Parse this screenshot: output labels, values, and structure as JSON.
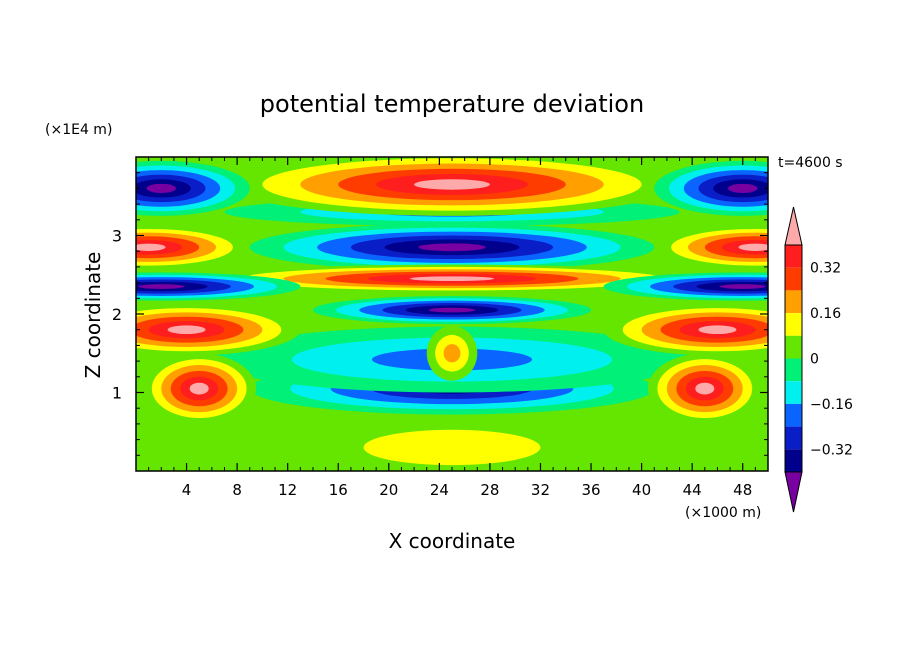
{
  "chart_data": {
    "type": "heatmap",
    "title": "potential temperature deviation",
    "xlabel": "X coordinate",
    "ylabel": "Z coordinate",
    "x_unit": "(×1000 m)",
    "y_unit": "(×1E4 m)",
    "time_label": "t=4600 s",
    "xlim": [
      0,
      50
    ],
    "ylim": [
      0,
      4
    ],
    "x_ticks": [
      {
        "value": 4,
        "label": "4"
      },
      {
        "value": 8,
        "label": "8"
      },
      {
        "value": 12,
        "label": "12"
      },
      {
        "value": 16,
        "label": "16"
      },
      {
        "value": 20,
        "label": "20"
      },
      {
        "value": 24,
        "label": "24"
      },
      {
        "value": 28,
        "label": "28"
      },
      {
        "value": 32,
        "label": "32"
      },
      {
        "value": 36,
        "label": "36"
      },
      {
        "value": 40,
        "label": "40"
      },
      {
        "value": 44,
        "label": "44"
      },
      {
        "value": 48,
        "label": "48"
      }
    ],
    "y_ticks": [
      {
        "value": 1,
        "label": "1"
      },
      {
        "value": 2,
        "label": "2"
      },
      {
        "value": 3,
        "label": "3"
      }
    ],
    "colorbar": {
      "levels": [
        -0.4,
        -0.32,
        -0.24,
        -0.16,
        -0.08,
        0,
        0.08,
        0.16,
        0.24,
        0.32,
        0.4
      ],
      "colors": [
        "#7800a0",
        "#00008c",
        "#0a1ec8",
        "#0a64ff",
        "#00f0f0",
        "#00f078",
        "#64e600",
        "#ffff00",
        "#ffa000",
        "#ff3c00",
        "#ff1e1e",
        "#ffaaaa"
      ],
      "labels": [
        {
          "value": -0.32,
          "label": "−0.32"
        },
        {
          "value": -0.16,
          "label": "−0.16"
        },
        {
          "value": 0,
          "label": "0"
        },
        {
          "value": 0.16,
          "label": "0.16"
        },
        {
          "value": 0.32,
          "label": "0.32"
        }
      ]
    },
    "blobs": [
      {
        "x": 25,
        "y": 0.3,
        "rx": 14,
        "ry": 0.45,
        "v": 0.12
      },
      {
        "x": 25,
        "y": 1.05,
        "rx": 16,
        "ry": 0.33,
        "v": -0.34
      },
      {
        "x": 25,
        "y": 1.42,
        "rx": 19,
        "ry": 0.42,
        "v": -0.18
      },
      {
        "x": 25,
        "y": 1.5,
        "rx": 2,
        "ry": 0.35,
        "v": 0.2
      },
      {
        "x": 25,
        "y": 2.05,
        "rx": 11,
        "ry": 0.18,
        "v": -0.45
      },
      {
        "x": 25,
        "y": 2.85,
        "rx": 16,
        "ry": 0.3,
        "v": -0.5
      },
      {
        "x": 25,
        "y": 3.3,
        "rx": 18,
        "ry": 0.18,
        "v": -0.2
      },
      {
        "x": 25,
        "y": 3.65,
        "rx": 18,
        "ry": 0.4,
        "v": 0.6
      },
      {
        "x": 25,
        "y": 2.45,
        "rx": 20,
        "ry": 0.18,
        "v": 0.55
      },
      {
        "x": 2,
        "y": 3.6,
        "rx": 7,
        "ry": 0.35,
        "v": -0.5
      },
      {
        "x": 48,
        "y": 3.6,
        "rx": 7,
        "ry": 0.35,
        "v": -0.5
      },
      {
        "x": 1,
        "y": 2.85,
        "rx": 8,
        "ry": 0.28,
        "v": 0.5
      },
      {
        "x": 49,
        "y": 2.85,
        "rx": 8,
        "ry": 0.28,
        "v": 0.5
      },
      {
        "x": 2,
        "y": 2.35,
        "rx": 11,
        "ry": 0.18,
        "v": -0.5
      },
      {
        "x": 48,
        "y": 2.35,
        "rx": 11,
        "ry": 0.18,
        "v": -0.5
      },
      {
        "x": 4,
        "y": 1.8,
        "rx": 9,
        "ry": 0.33,
        "v": 0.5
      },
      {
        "x": 46,
        "y": 1.8,
        "rx": 9,
        "ry": 0.33,
        "v": 0.5
      },
      {
        "x": 5,
        "y": 1.05,
        "rx": 4.5,
        "ry": 0.45,
        "v": 0.55
      },
      {
        "x": 45,
        "y": 1.05,
        "rx": 4.5,
        "ry": 0.45,
        "v": 0.55
      }
    ]
  }
}
